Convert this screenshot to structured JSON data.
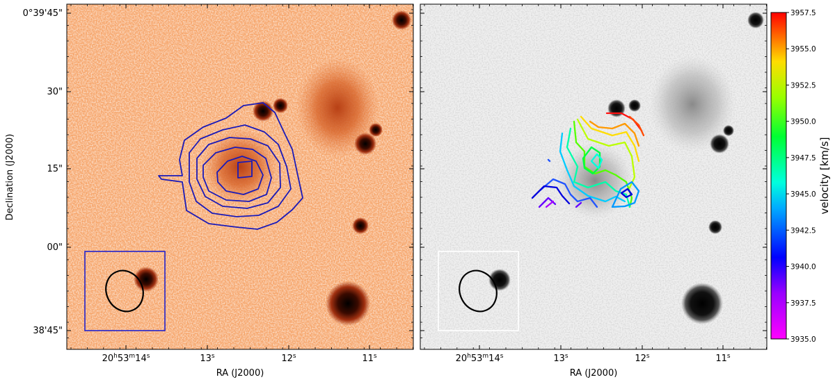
{
  "left_panel": {
    "dec_labels": [
      "0°39'45\"",
      "30\"",
      "15\"",
      "00\"",
      "38'45\""
    ],
    "ra_labels": [
      "20h53m14s",
      "13s",
      "12s",
      "11s"
    ],
    "ra_first": {
      "h": "20",
      "hs": "h",
      "m": "53",
      "ms": "m",
      "s": "14",
      "ss": "s"
    },
    "ra_secs": [
      {
        "v": "13",
        "s": "s"
      },
      {
        "v": "12",
        "s": "s"
      },
      {
        "v": "11",
        "s": "s"
      }
    ],
    "xlabel": "RA (J2000)",
    "ylabel": "Declination (J2000)"
  },
  "right_panel": {
    "ra_first": {
      "h": "20",
      "hs": "h",
      "m": "53",
      "ms": "m",
      "s": "14",
      "ss": "s"
    },
    "ra_secs": [
      {
        "v": "13",
        "s": "s"
      },
      {
        "v": "12",
        "s": "s"
      },
      {
        "v": "11",
        "s": "s"
      }
    ],
    "xlabel": "RA (J2000)"
  },
  "colorbar": {
    "title": "velocity [km/s]",
    "ticks": [
      "3957.5",
      "3955.0",
      "3952.5",
      "3950.0",
      "3947.5",
      "3945.0",
      "3942.5",
      "3940.0",
      "3937.5",
      "3935.0"
    ],
    "range": [
      3935.0,
      3957.5
    ],
    "colormap": "gist_rainbow"
  },
  "colors": {
    "contour_left": "#1a1ab8",
    "beam_box_left": "#2222cc",
    "beam_box_right": "#ffffff",
    "beam_ellipse": "#000000",
    "panel_left_bg": "#f4a26a",
    "panel_right_bg": "#f0f0f0"
  }
}
